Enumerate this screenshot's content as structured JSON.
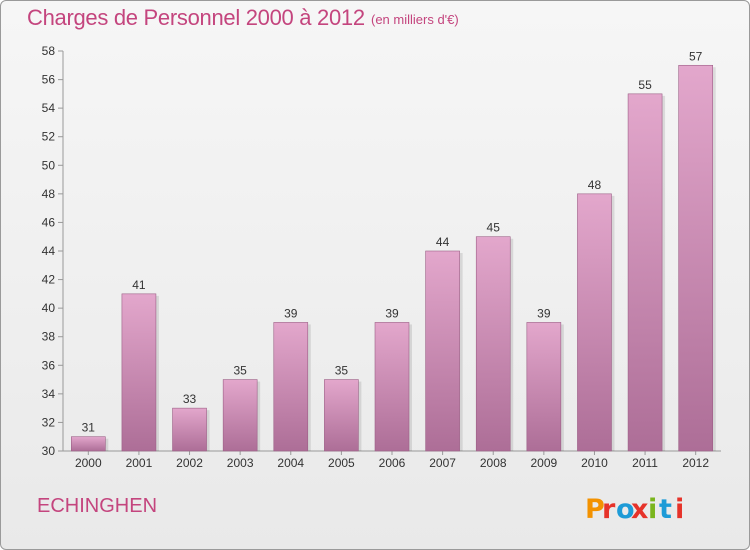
{
  "title": "Charges de Personnel 2000 à 2012",
  "subtitle": "(en milliers d'€)",
  "commune": "ECHINGHEN",
  "logo": {
    "text": "Proxiti",
    "colors": [
      "#f39200",
      "#e6332a",
      "#1d9bd7",
      "#e6332a",
      "#7ab51d",
      "#1d9bd7",
      "#e6332a"
    ]
  },
  "colors": {
    "bar_top": "#e3a7cc",
    "bar_bottom": "#ad6e97",
    "label": "#333333",
    "grid": "#cccccc",
    "title": "#c4457e"
  },
  "chart_data": {
    "type": "bar",
    "title": "Charges de Personnel 2000 à 2012",
    "subtitle": "(en milliers d'€)",
    "categories": [
      "2000",
      "2001",
      "2002",
      "2003",
      "2004",
      "2005",
      "2006",
      "2007",
      "2008",
      "2009",
      "2010",
      "2011",
      "2012"
    ],
    "values": [
      31,
      41,
      33,
      35,
      39,
      35,
      39,
      44,
      45,
      39,
      48,
      55,
      57
    ],
    "ylim": [
      30,
      58
    ],
    "yticks": [
      30,
      32,
      34,
      36,
      38,
      40,
      42,
      44,
      46,
      48,
      50,
      52,
      54,
      56,
      58
    ],
    "grid": false
  }
}
